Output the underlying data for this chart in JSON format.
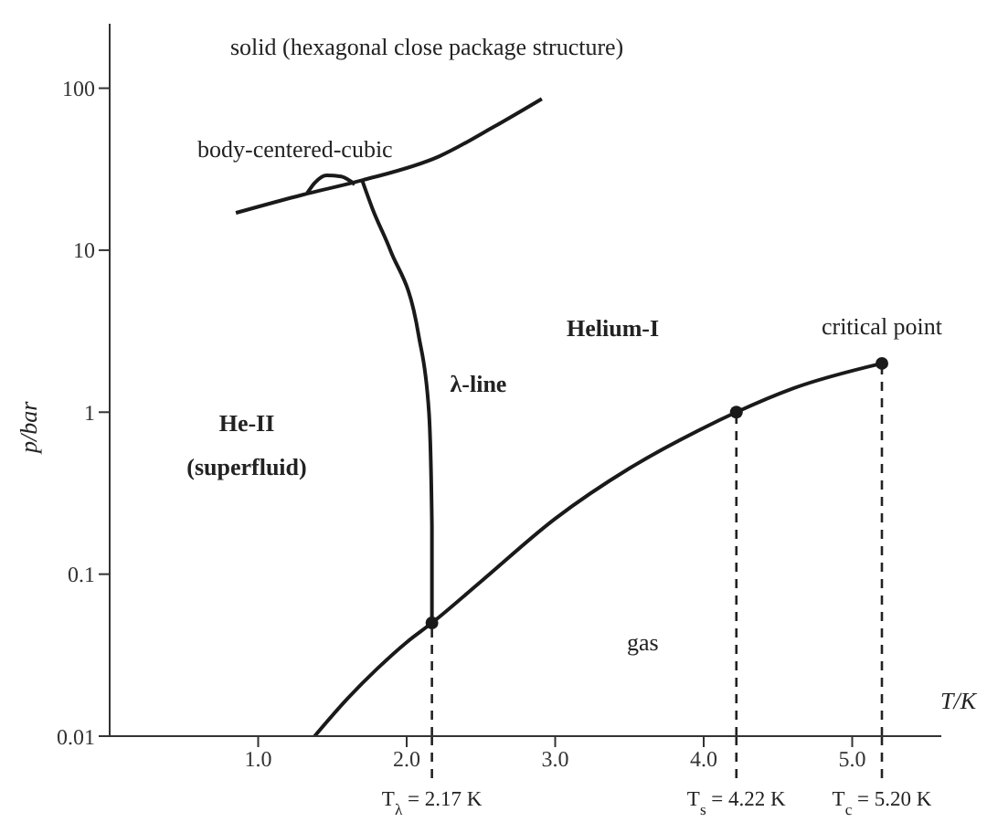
{
  "chart_data": {
    "type": "line",
    "xlabel": "T/K",
    "ylabel": "p/bar",
    "log": "y",
    "xlim": [
      0,
      5.6
    ],
    "ylim": [
      0.01,
      250
    ],
    "xticks": [
      {
        "value": 1,
        "label": "1.0"
      },
      {
        "value": 2,
        "label": "2.0"
      },
      {
        "value": 3,
        "label": "3.0"
      },
      {
        "value": 4,
        "label": "4.0"
      },
      {
        "value": 5,
        "label": "5.0"
      }
    ],
    "yticks": [
      0.01,
      0.1,
      1,
      10,
      100
    ],
    "series": [
      {
        "color": "#1a1a1a",
        "x": [
          1.38,
          1.6,
          1.8,
          2.0,
          2.17,
          2.5,
          3.0,
          3.5,
          4.0,
          4.22,
          4.6,
          5.2
        ],
        "values": [
          0.01,
          0.017,
          0.026,
          0.038,
          0.05,
          0.09,
          0.22,
          0.45,
          0.8,
          1.0,
          1.4,
          2.0
        ]
      },
      {
        "color": "#1a1a1a",
        "x": [
          2.17,
          2.17,
          2.15,
          2.08,
          1.89,
          1.77,
          1.7
        ],
        "values": [
          0.05,
          0.2,
          1,
          3,
          10,
          18,
          27
        ]
      },
      {
        "color": "#1a1a1a",
        "x": [
          0.85,
          1.3,
          1.7,
          2.22,
          2.59,
          2.91
        ],
        "values": [
          17,
          22,
          27,
          38,
          58,
          86
        ]
      },
      {
        "color": "#1a1a1a",
        "x": [
          1.33,
          1.38,
          1.46,
          1.56,
          1.65
        ],
        "values": [
          22.5,
          26,
          29,
          28.5,
          25.5
        ]
      },
      {
        "type": "scatter",
        "color": "#1a1a1a",
        "marker": "circle",
        "x": [
          2.17,
          4.22,
          5.2
        ],
        "values": [
          0.05,
          1.0,
          2.0
        ]
      }
    ],
    "ref_lines": [
      {
        "axis": "x",
        "value": 2.17,
        "label": "T$_{λ}$ = 2.17 K",
        "line_style": "dashed"
      },
      {
        "axis": "x",
        "value": 4.22,
        "label": "T$_{s}$ = 4.22 K",
        "line_style": "dashed"
      },
      {
        "axis": "x",
        "value": 5.2,
        "label": "T$_{c}$ = 5.20 K",
        "line_style": "dashed"
      }
    ],
    "annotations": [
      "solid (hexagonal close package structure)",
      "body-centered-cubic",
      "Helium-I",
      "He-II (superfluid)",
      "gas",
      {
        "text": "critical point",
        "x": 5.2,
        "y": 2.0
      },
      {
        "text": "λ-line",
        "x": 2.12,
        "y": 1.5
      }
    ]
  }
}
